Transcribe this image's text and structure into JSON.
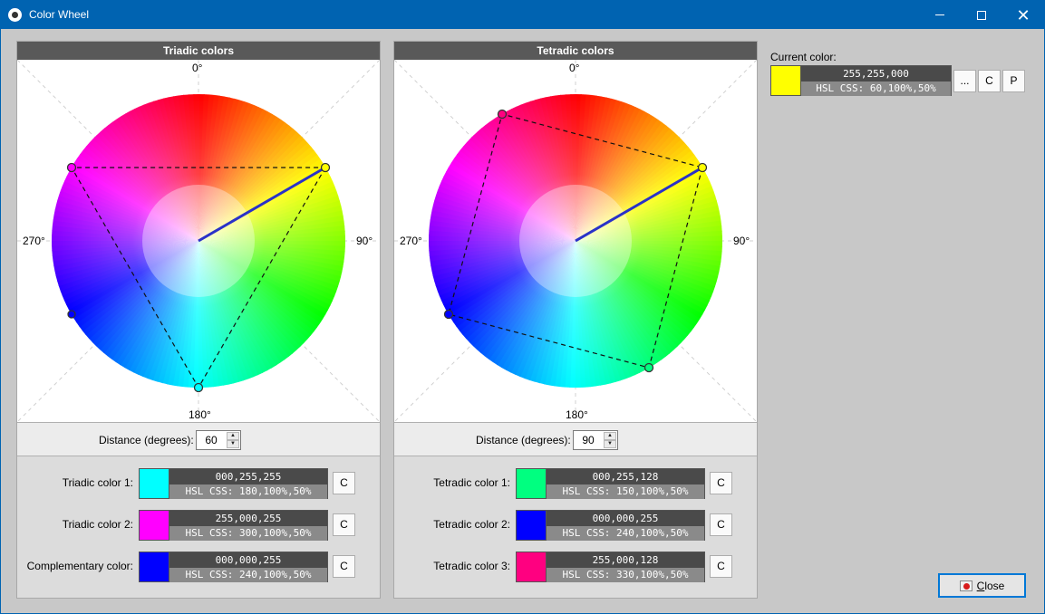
{
  "window": {
    "title": "Color Wheel",
    "icon": "paw-icon"
  },
  "triadic": {
    "header": "Triadic colors",
    "deg_labels": {
      "top": "0°",
      "right": "90°",
      "bottom": "180°",
      "left": "270°"
    },
    "distance_label": "Distance (degrees):",
    "distance_value": "60",
    "rows": [
      {
        "label": "Triadic color 1:",
        "rgb": "000,255,255",
        "hsl": "HSL CSS: 180,100%,50%",
        "color": "#00ffff",
        "copy": "C"
      },
      {
        "label": "Triadic color 2:",
        "rgb": "255,000,255",
        "hsl": "HSL CSS: 300,100%,50%",
        "color": "#ff00ff",
        "copy": "C"
      },
      {
        "label": "Complementary color:",
        "rgb": "000,000,255",
        "hsl": "HSL CSS: 240,100%,50%",
        "color": "#0000ff",
        "copy": "C"
      }
    ]
  },
  "tetradic": {
    "header": "Tetradic colors",
    "deg_labels": {
      "top": "0°",
      "right": "90°",
      "bottom": "180°",
      "left": "270°"
    },
    "distance_label": "Distance (degrees):",
    "distance_value": "90",
    "rows": [
      {
        "label": "Tetradic color 1:",
        "rgb": "000,255,128",
        "hsl": "HSL CSS: 150,100%,50%",
        "color": "#00ff80",
        "copy": "C"
      },
      {
        "label": "Tetradic color 2:",
        "rgb": "000,000,255",
        "hsl": "HSL CSS: 240,100%,50%",
        "color": "#0000ff",
        "copy": "C"
      },
      {
        "label": "Tetradic color 3:",
        "rgb": "255,000,128",
        "hsl": "HSL CSS: 330,100%,50%",
        "color": "#ff0080",
        "copy": "C"
      }
    ]
  },
  "current": {
    "label": "Current color:",
    "rgb": "255,255,000",
    "hsl": "HSL CSS: 60,100%,50%",
    "color": "#ffff00",
    "buttons": {
      "more": "...",
      "copy": "C",
      "paste": "P"
    }
  },
  "close_button": {
    "label": "Close"
  }
}
